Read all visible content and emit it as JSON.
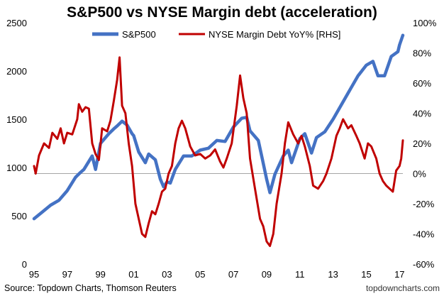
{
  "chart_data": {
    "type": "line",
    "title": "S&P500 vs NYSE Margin debt (acceleration)",
    "source_note": "Source: Topdown Charts, Thomson Reuters",
    "watermark": "topdowncharts.com",
    "x_ticks": [
      "95",
      "97",
      "99",
      "01",
      "03",
      "05",
      "07",
      "09",
      "11",
      "13",
      "15",
      "17"
    ],
    "xlim": [
      1995,
      2017.2
    ],
    "y_left": {
      "ticks": [
        "0",
        "500",
        "1000",
        "1500",
        "2000",
        "2500"
      ],
      "lim": [
        0,
        2500
      ]
    },
    "y_right": {
      "ticks": [
        "-60%",
        "-40%",
        "-20%",
        "0%",
        "20%",
        "40%",
        "60%",
        "80%",
        "100%"
      ],
      "lim": [
        -60,
        100
      ],
      "zero_line": 0
    },
    "grid": false,
    "legend_position": "top-center",
    "series": [
      {
        "name": "S&P500",
        "axis": "left",
        "color": "#4472C4",
        "points": [
          [
            1995.0,
            470
          ],
          [
            1995.5,
            540
          ],
          [
            1996.0,
            610
          ],
          [
            1996.5,
            660
          ],
          [
            1997.0,
            760
          ],
          [
            1997.5,
            900
          ],
          [
            1997.8,
            950
          ],
          [
            1998.0,
            980
          ],
          [
            1998.5,
            1120
          ],
          [
            1998.7,
            980
          ],
          [
            1999.0,
            1250
          ],
          [
            1999.5,
            1350
          ],
          [
            1999.8,
            1400
          ],
          [
            2000.0,
            1430
          ],
          [
            2000.3,
            1480
          ],
          [
            2000.6,
            1440
          ],
          [
            2000.9,
            1350
          ],
          [
            2001.0,
            1330
          ],
          [
            2001.3,
            1160
          ],
          [
            2001.7,
            1050
          ],
          [
            2001.9,
            1140
          ],
          [
            2002.3,
            1080
          ],
          [
            2002.6,
            880
          ],
          [
            2002.8,
            800
          ],
          [
            2003.0,
            850
          ],
          [
            2003.2,
            840
          ],
          [
            2003.5,
            980
          ],
          [
            2004.0,
            1120
          ],
          [
            2004.5,
            1120
          ],
          [
            2005.0,
            1180
          ],
          [
            2005.5,
            1200
          ],
          [
            2006.0,
            1280
          ],
          [
            2006.5,
            1270
          ],
          [
            2007.0,
            1420
          ],
          [
            2007.5,
            1510
          ],
          [
            2007.8,
            1520
          ],
          [
            2008.0,
            1380
          ],
          [
            2008.5,
            1280
          ],
          [
            2008.75,
            1080
          ],
          [
            2009.0,
            880
          ],
          [
            2009.2,
            740
          ],
          [
            2009.5,
            930
          ],
          [
            2010.0,
            1120
          ],
          [
            2010.3,
            1180
          ],
          [
            2010.5,
            1050
          ],
          [
            2011.0,
            1300
          ],
          [
            2011.3,
            1350
          ],
          [
            2011.7,
            1150
          ],
          [
            2012.0,
            1310
          ],
          [
            2012.5,
            1370
          ],
          [
            2013.0,
            1500
          ],
          [
            2013.5,
            1650
          ],
          [
            2014.0,
            1800
          ],
          [
            2014.5,
            1950
          ],
          [
            2015.0,
            2060
          ],
          [
            2015.4,
            2100
          ],
          [
            2015.7,
            1950
          ],
          [
            2016.1,
            1950
          ],
          [
            2016.5,
            2150
          ],
          [
            2016.9,
            2200
          ],
          [
            2017.0,
            2270
          ],
          [
            2017.2,
            2370
          ]
        ]
      },
      {
        "name": "NYSE Margin Debt YoY% [RHS]",
        "axis": "right",
        "color": "#C00000",
        "points": [
          [
            1995.0,
            5
          ],
          [
            1995.1,
            0
          ],
          [
            1995.3,
            12
          ],
          [
            1995.6,
            20
          ],
          [
            1995.9,
            17
          ],
          [
            1996.1,
            27
          ],
          [
            1996.4,
            23
          ],
          [
            1996.6,
            30
          ],
          [
            1996.8,
            20
          ],
          [
            1997.0,
            27
          ],
          [
            1997.3,
            26
          ],
          [
            1997.6,
            36
          ],
          [
            1997.7,
            46
          ],
          [
            1997.9,
            41
          ],
          [
            1998.1,
            44
          ],
          [
            1998.3,
            43
          ],
          [
            1998.5,
            20
          ],
          [
            1998.7,
            13
          ],
          [
            1998.9,
            9
          ],
          [
            1999.1,
            30
          ],
          [
            1999.4,
            28
          ],
          [
            1999.6,
            35
          ],
          [
            1999.8,
            48
          ],
          [
            2000.0,
            62
          ],
          [
            2000.15,
            77
          ],
          [
            2000.3,
            45
          ],
          [
            2000.5,
            40
          ],
          [
            2000.7,
            20
          ],
          [
            2000.9,
            5
          ],
          [
            2001.1,
            -20
          ],
          [
            2001.3,
            -30
          ],
          [
            2001.5,
            -40
          ],
          [
            2001.7,
            -42
          ],
          [
            2001.9,
            -33
          ],
          [
            2002.1,
            -25
          ],
          [
            2002.3,
            -27
          ],
          [
            2002.5,
            -20
          ],
          [
            2002.7,
            -12
          ],
          [
            2002.9,
            -10
          ],
          [
            2003.1,
            0
          ],
          [
            2003.3,
            5
          ],
          [
            2003.5,
            20
          ],
          [
            2003.7,
            30
          ],
          [
            2003.9,
            35
          ],
          [
            2004.1,
            30
          ],
          [
            2004.4,
            18
          ],
          [
            2004.7,
            12
          ],
          [
            2005.0,
            13
          ],
          [
            2005.3,
            10
          ],
          [
            2005.6,
            12
          ],
          [
            2005.9,
            16
          ],
          [
            2006.2,
            8
          ],
          [
            2006.4,
            4
          ],
          [
            2006.6,
            10
          ],
          [
            2006.9,
            20
          ],
          [
            2007.2,
            45
          ],
          [
            2007.4,
            65
          ],
          [
            2007.6,
            50
          ],
          [
            2007.8,
            40
          ],
          [
            2008.0,
            10
          ],
          [
            2008.3,
            -10
          ],
          [
            2008.6,
            -30
          ],
          [
            2008.8,
            -35
          ],
          [
            2009.0,
            -45
          ],
          [
            2009.2,
            -48
          ],
          [
            2009.4,
            -40
          ],
          [
            2009.6,
            -20
          ],
          [
            2009.9,
            0
          ],
          [
            2010.1,
            20
          ],
          [
            2010.3,
            34
          ],
          [
            2010.6,
            26
          ],
          [
            2010.9,
            20
          ],
          [
            2011.1,
            25
          ],
          [
            2011.3,
            18
          ],
          [
            2011.6,
            5
          ],
          [
            2011.8,
            -8
          ],
          [
            2012.1,
            -10
          ],
          [
            2012.4,
            -5
          ],
          [
            2012.6,
            0
          ],
          [
            2012.9,
            10
          ],
          [
            2013.2,
            25
          ],
          [
            2013.4,
            30
          ],
          [
            2013.6,
            36
          ],
          [
            2013.9,
            30
          ],
          [
            2014.1,
            32
          ],
          [
            2014.4,
            25
          ],
          [
            2014.6,
            20
          ],
          [
            2014.9,
            10
          ],
          [
            2015.1,
            20
          ],
          [
            2015.3,
            18
          ],
          [
            2015.6,
            10
          ],
          [
            2015.8,
            0
          ],
          [
            2016.0,
            -5
          ],
          [
            2016.2,
            -8
          ],
          [
            2016.4,
            -10
          ],
          [
            2016.6,
            -12
          ],
          [
            2016.8,
            2
          ],
          [
            2017.0,
            5
          ],
          [
            2017.1,
            10
          ],
          [
            2017.2,
            22
          ]
        ]
      }
    ]
  }
}
